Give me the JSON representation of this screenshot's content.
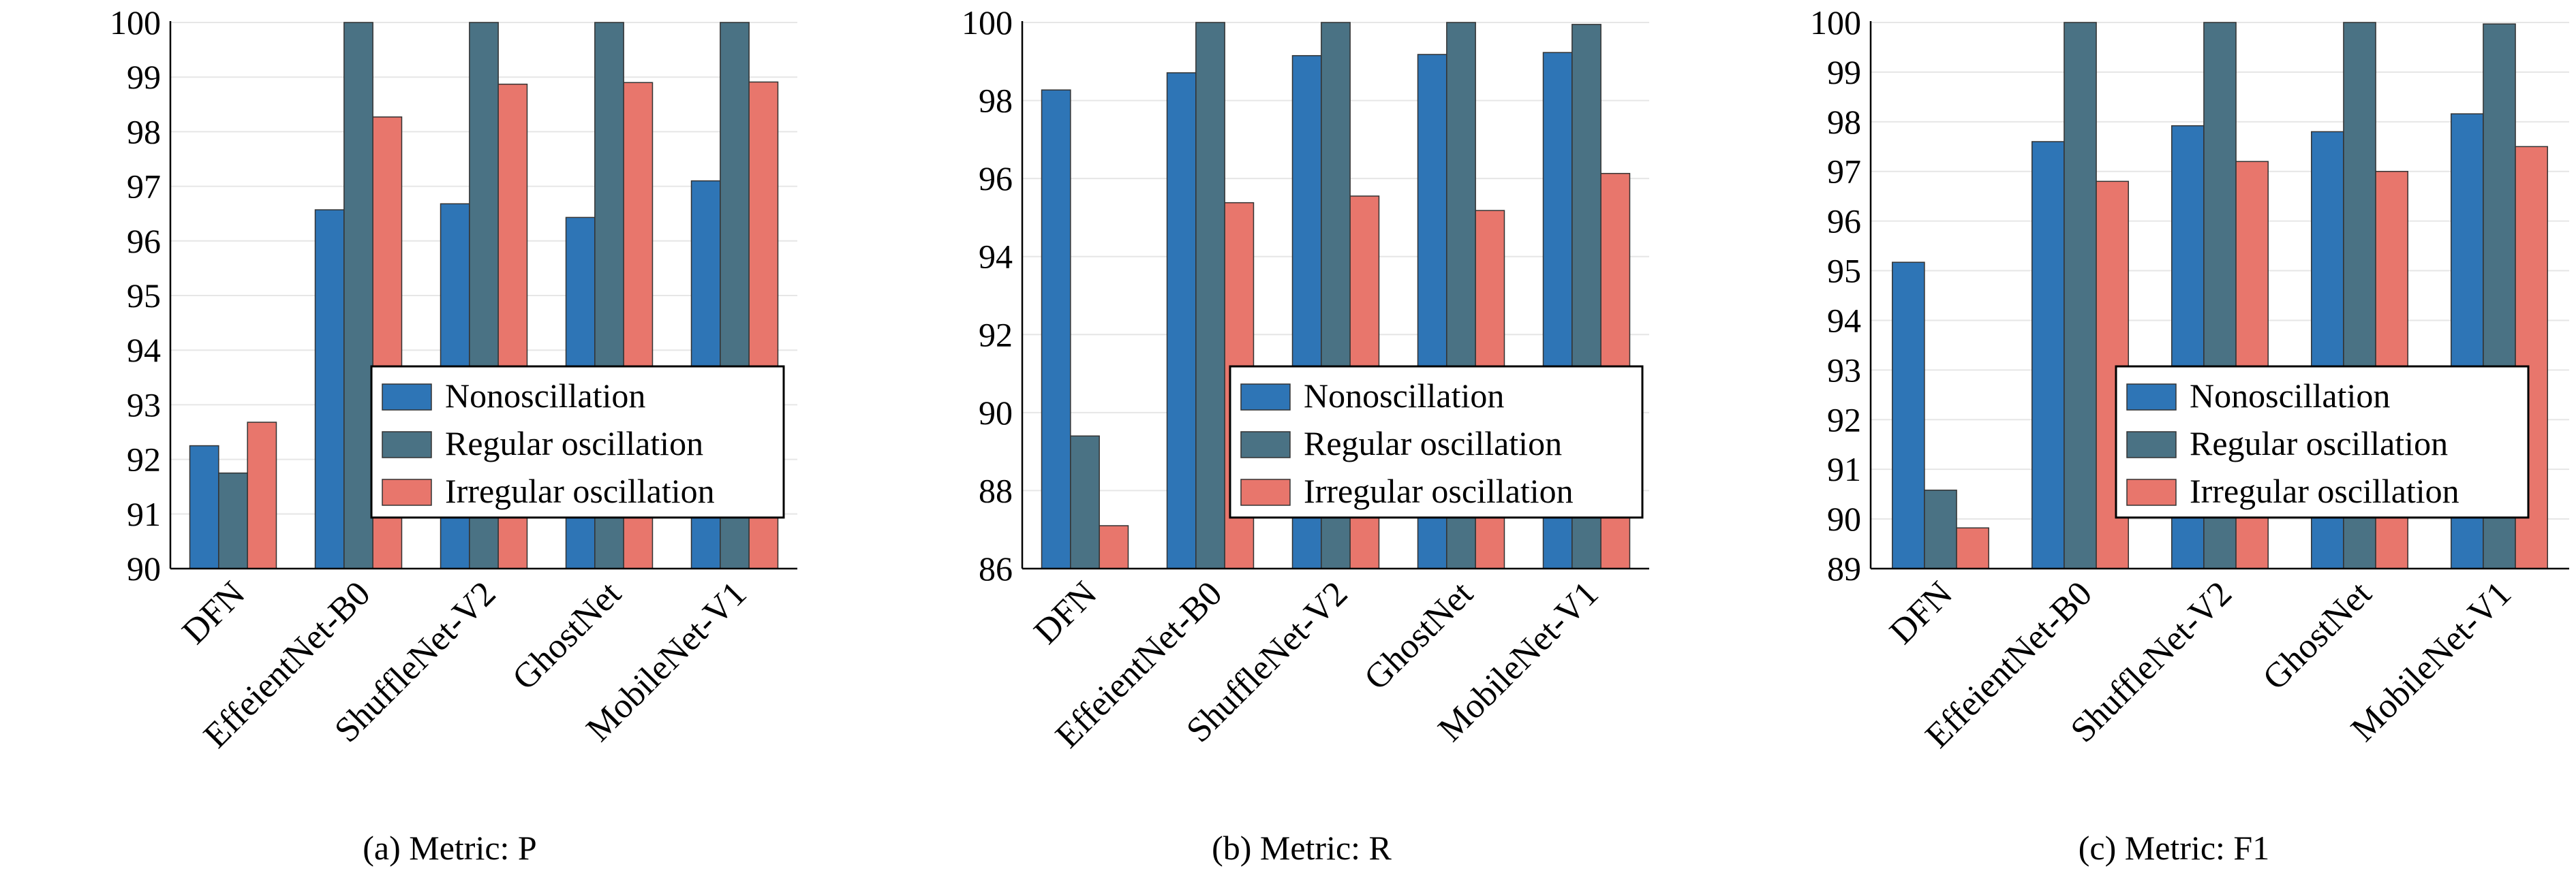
{
  "chart_data": [
    {
      "type": "bar",
      "caption": "(a) Metric: P",
      "categories": [
        "DFN",
        "EffeientNet-B0",
        "ShuffleNet-V2",
        "GhostNet",
        "MobileNet-V1"
      ],
      "series": [
        {
          "name": "Nonoscillation",
          "color": "#2e75b6",
          "values": [
            92.25,
            96.57,
            96.68,
            96.43,
            97.1
          ]
        },
        {
          "name": "Regular oscillation",
          "color": "#4a7284",
          "values": [
            91.75,
            100,
            100,
            100,
            100
          ]
        },
        {
          "name": "Irregular oscillation",
          "color": "#e8766c",
          "values": [
            92.68,
            98.27,
            98.87,
            98.9,
            98.91
          ]
        }
      ],
      "ylim": [
        90,
        100
      ],
      "yticks": [
        "90",
        "91",
        "92",
        "93",
        "94",
        "95",
        "96",
        "97",
        "98",
        "99",
        "100"
      ],
      "ytick_values": [
        90,
        91,
        92,
        93,
        94,
        95,
        96,
        97,
        98,
        99,
        100
      ],
      "legend": "center-right",
      "grid": true
    },
    {
      "type": "bar",
      "caption": "(b) Metric: R",
      "categories": [
        "DFN",
        "EffeientNet-B0",
        "ShuffleNet-V2",
        "GhostNet",
        "MobileNet-V1"
      ],
      "series": [
        {
          "name": "Nonoscillation",
          "color": "#2e75b6",
          "values": [
            98.27,
            98.71,
            99.15,
            99.18,
            99.23
          ]
        },
        {
          "name": "Regular oscillation",
          "color": "#4a7284",
          "values": [
            89.4,
            100,
            100,
            100,
            99.95
          ]
        },
        {
          "name": "Irregular oscillation",
          "color": "#e8766c",
          "values": [
            87.1,
            95.38,
            95.55,
            95.18,
            96.13
          ]
        }
      ],
      "ylim": [
        86,
        100
      ],
      "yticks": [
        "86",
        "88",
        "90",
        "92",
        "94",
        "96",
        "98",
        "100"
      ],
      "ytick_values": [
        86,
        88,
        90,
        92,
        94,
        96,
        98,
        100
      ],
      "legend": "center-right",
      "grid": true
    },
    {
      "type": "bar",
      "caption": "(c) Metric: F1",
      "categories": [
        "DFN",
        "EffeientNet-B0",
        "ShuffleNet-V2",
        "GhostNet",
        "MobileNet-V1"
      ],
      "series": [
        {
          "name": "Nonoscillation",
          "color": "#2e75b6",
          "values": [
            95.17,
            97.6,
            97.92,
            97.8,
            98.16
          ]
        },
        {
          "name": "Regular oscillation",
          "color": "#4a7284",
          "values": [
            90.58,
            100,
            100,
            100,
            99.97
          ]
        },
        {
          "name": "Irregular oscillation",
          "color": "#e8766c",
          "values": [
            89.82,
            96.8,
            97.2,
            97.0,
            97.5
          ]
        }
      ],
      "ylim": [
        89,
        100
      ],
      "yticks": [
        "89",
        "90",
        "91",
        "92",
        "93",
        "94",
        "95",
        "96",
        "97",
        "98",
        "99",
        "100"
      ],
      "ytick_values": [
        89,
        90,
        91,
        92,
        93,
        94,
        95,
        96,
        97,
        98,
        99,
        100
      ],
      "legend": "center-right",
      "grid": true
    }
  ]
}
